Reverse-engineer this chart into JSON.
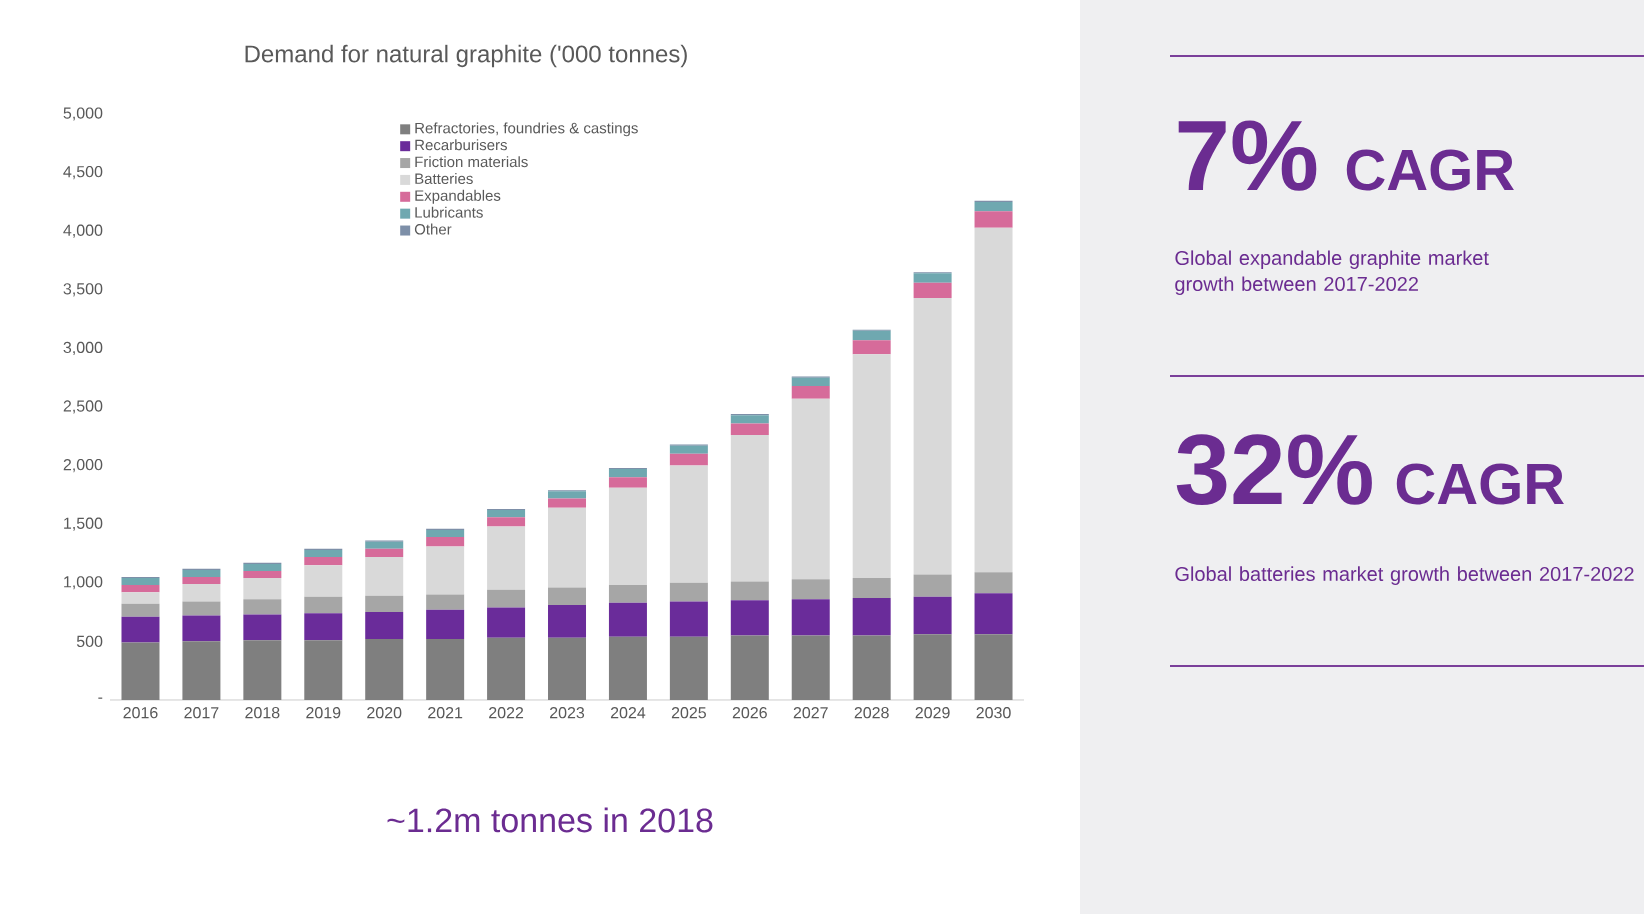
{
  "chart_data": {
    "type": "bar",
    "stacked": true,
    "title": "Demand for natural graphite ('000 tonnes)",
    "categories": [
      "2016",
      "2017",
      "2018",
      "2019",
      "2020",
      "2021",
      "2022",
      "2023",
      "2024",
      "2025",
      "2026",
      "2027",
      "2028",
      "2029",
      "2030"
    ],
    "series": [
      {
        "name": "Refractories, foundries & castings",
        "color": "#7f7f7f",
        "values": [
          490,
          500,
          510,
          510,
          520,
          520,
          530,
          530,
          540,
          540,
          550,
          550,
          550,
          560,
          560
        ]
      },
      {
        "name": "Recarburisers",
        "color": "#6a2c9a",
        "values": [
          220,
          220,
          220,
          230,
          230,
          250,
          260,
          280,
          290,
          300,
          300,
          310,
          320,
          320,
          350
        ]
      },
      {
        "name": "Friction materials",
        "color": "#a6a6a6",
        "values": [
          110,
          120,
          130,
          140,
          140,
          130,
          150,
          150,
          150,
          160,
          160,
          170,
          170,
          190,
          180
        ]
      },
      {
        "name": "Batteries",
        "color": "#d9d9d9",
        "values": [
          100,
          150,
          180,
          270,
          330,
          410,
          540,
          680,
          830,
          1000,
          1250,
          1540,
          1910,
          2360,
          2940
        ]
      },
      {
        "name": "Expandables",
        "color": "#d66b9a",
        "values": [
          60,
          60,
          60,
          70,
          70,
          80,
          80,
          80,
          90,
          100,
          100,
          110,
          120,
          130,
          140
        ]
      },
      {
        "name": "Lubricants",
        "color": "#6fa8b0",
        "values": [
          60,
          60,
          60,
          60,
          60,
          60,
          60,
          60,
          70,
          70,
          70,
          70,
          80,
          80,
          80
        ]
      },
      {
        "name": "Other",
        "color": "#7d8fa8",
        "values": [
          10,
          10,
          10,
          10,
          10,
          10,
          10,
          10,
          10,
          10,
          10,
          10,
          10,
          10,
          10
        ]
      }
    ],
    "ylim": [
      0,
      5000
    ],
    "yticks": [
      {
        "value": 0,
        "label": "-"
      },
      500,
      {
        "value": 1000,
        "label": "1,000"
      },
      {
        "value": 1500,
        "label": "1,500"
      },
      {
        "value": 2000,
        "label": "2,000"
      },
      {
        "value": 2500,
        "label": "2,500"
      },
      {
        "value": 3000,
        "label": "3,000"
      },
      {
        "value": 3500,
        "label": "3,500"
      },
      {
        "value": 4000,
        "label": "4,000"
      },
      {
        "value": 4500,
        "label": "4,500"
      },
      {
        "value": 5000,
        "label": "5,000"
      }
    ],
    "legend": "top",
    "annotations": [
      "~1.2m tonnes in 2018",
      "7%",
      "CAGR",
      "Global expandable graphite market growth between 2017-2022",
      "32%",
      "CAGR",
      "Global batteries market growth between 2017-2022"
    ]
  }
}
